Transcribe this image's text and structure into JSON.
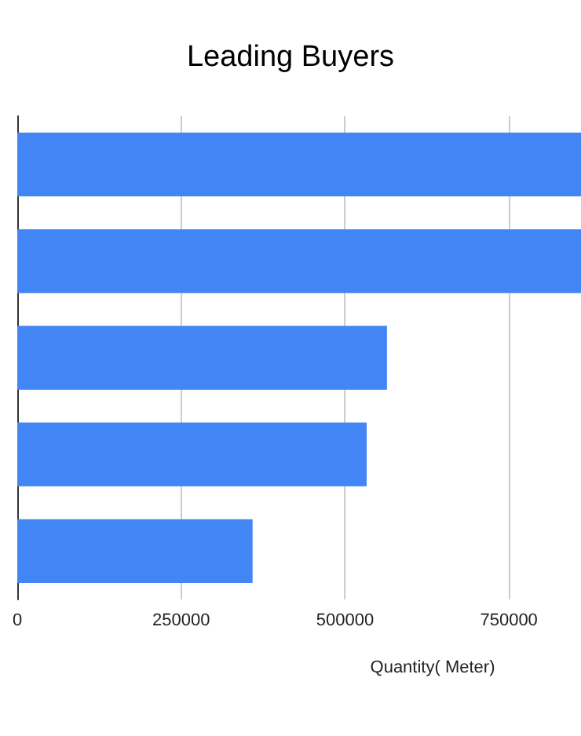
{
  "chart_data": {
    "type": "bar",
    "orientation": "horizontal",
    "title": "Leading Buyers",
    "xlabel": "Quantity( Meter)",
    "categories": [
      null,
      null,
      null,
      null,
      null
    ],
    "values": [
      860000,
      860000,
      564000,
      533000,
      359000
    ],
    "color": "#4285f4",
    "xlim": [
      0,
      860000
    ],
    "xticks": [
      0,
      250000,
      500000,
      750000
    ],
    "grid": "x"
  }
}
